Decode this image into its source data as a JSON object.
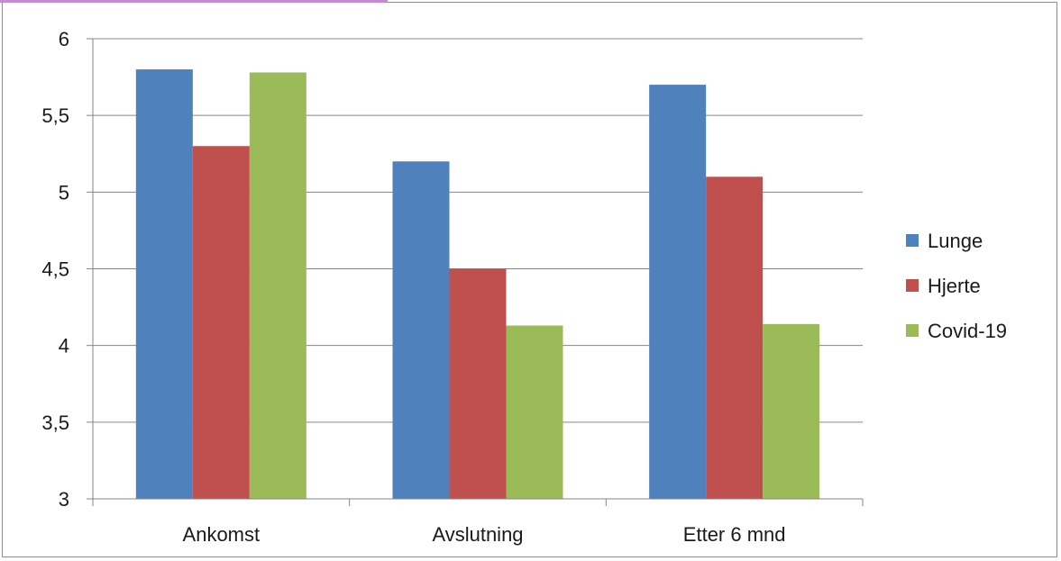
{
  "chart_data": {
    "type": "bar",
    "categories": [
      "Ankomst",
      "Avslutning",
      "Etter 6 mnd"
    ],
    "series": [
      {
        "name": "Lunge",
        "color": "#4f81bd",
        "values": [
          5.8,
          5.2,
          5.7
        ]
      },
      {
        "name": "Hjerte",
        "color": "#c0504d",
        "values": [
          5.3,
          4.5,
          5.1
        ]
      },
      {
        "name": "Covid-19",
        "color": "#9bbb59",
        "values": [
          5.78,
          4.13,
          4.14
        ]
      }
    ],
    "ylim": [
      3,
      6
    ],
    "yticks": [
      "3",
      "3,5",
      "4",
      "4,5",
      "5",
      "5,5",
      "6"
    ],
    "ytick_values": [
      3,
      3.5,
      4,
      4.5,
      5,
      5.5,
      6
    ],
    "grid": true,
    "legend_position": "right"
  }
}
